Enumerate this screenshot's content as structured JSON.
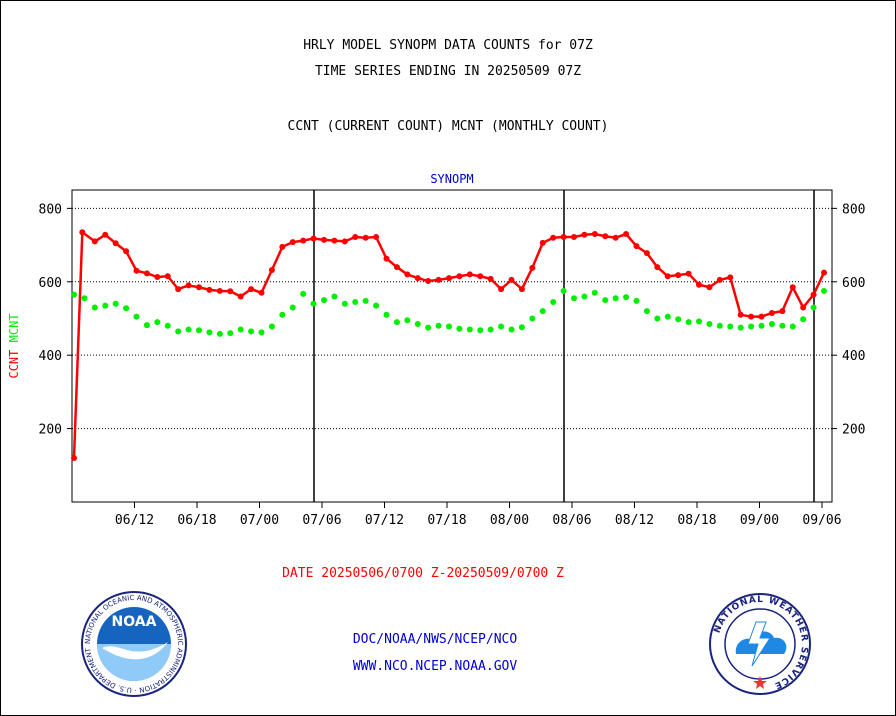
{
  "header": {
    "line1": "HRLY MODEL SYNOPM DATA COUNTS for 07Z",
    "line2": "TIME SERIES ENDING IN 20250509 07Z",
    "line3": "CCNT (CURRENT COUNT) MCNT (MONTHLY COUNT)"
  },
  "footer": {
    "date_range": "DATE 20250506/0700 Z-20250509/0700 Z",
    "link1": "DOC/NOAA/NWS/NCEP/NCO",
    "link2": "WWW.NCO.NCEP.NOAA.GOV"
  },
  "logos": {
    "left_text": "NOAA",
    "left_ring": "NATIONAL OCEANIC AND ATMOSPHERIC ADMINISTRATION · U.S. DEPARTMENT OF COMMERCE",
    "right_ring": "NATIONAL WEATHER SERVICE"
  },
  "colors": {
    "ccnt": "#ff0000",
    "mcnt": "#00ee00",
    "title": "#0000cc"
  },
  "chart_data": {
    "type": "line",
    "title": "SYNOPM",
    "ylabel_parts": [
      {
        "text": "CCNT",
        "color": "#ff0000"
      },
      {
        "text": "MCNT",
        "color": "#00ee00"
      }
    ],
    "ylim": [
      0,
      850
    ],
    "yticks": [
      200,
      400,
      600,
      800
    ],
    "grid": true,
    "x_tick_labels": [
      "06/12",
      "06/18",
      "07/00",
      "07/06",
      "07/12",
      "07/18",
      "08/00",
      "08/06",
      "08/12",
      "08/18",
      "09/00",
      "09/06"
    ],
    "x_tick_positions": [
      6,
      12,
      18,
      24,
      30,
      36,
      42,
      48,
      54,
      60,
      66,
      72
    ],
    "x_range": [
      0,
      72
    ],
    "day_boundaries": [
      24,
      48,
      72
    ],
    "series": [
      {
        "name": "CCNT",
        "color": "#ff0000",
        "x": [
          0,
          0.8,
          2,
          3,
          4,
          5,
          6,
          7,
          8,
          9,
          10,
          11,
          12,
          13,
          14,
          15,
          16,
          17,
          18,
          19,
          20,
          21,
          22,
          23,
          24,
          25,
          26,
          27,
          28,
          29,
          30,
          31,
          32,
          33,
          34,
          35,
          36,
          37,
          38,
          39,
          40,
          41,
          42,
          43,
          44,
          45,
          46,
          47,
          48,
          49,
          50,
          51,
          52,
          53,
          54,
          55,
          56,
          57,
          58,
          59,
          60,
          61,
          62,
          63,
          64,
          65,
          66,
          67,
          68,
          69,
          70,
          71,
          72
        ],
        "values": [
          120,
          735,
          710,
          728,
          705,
          683,
          630,
          623,
          613,
          615,
          580,
          590,
          585,
          578,
          575,
          574,
          560,
          580,
          570,
          632,
          695,
          708,
          712,
          718,
          714,
          712,
          710,
          722,
          720,
          722,
          663,
          640,
          620,
          610,
          602,
          605,
          610,
          615,
          620,
          615,
          608,
          580,
          605,
          580,
          638,
          706,
          720,
          722,
          722,
          728,
          730,
          724,
          720,
          730,
          697,
          678,
          640,
          615,
          618,
          622,
          592,
          585,
          605,
          612,
          510,
          505,
          505,
          515,
          520,
          585,
          530,
          565,
          625
        ]
      },
      {
        "name": "MCNT",
        "color": "#00ee00",
        "x": [
          0,
          1,
          2,
          3,
          4,
          5,
          6,
          7,
          8,
          9,
          10,
          11,
          12,
          13,
          14,
          15,
          16,
          17,
          18,
          19,
          20,
          21,
          22,
          23,
          24,
          25,
          26,
          27,
          28,
          29,
          30,
          31,
          32,
          33,
          34,
          35,
          36,
          37,
          38,
          39,
          40,
          41,
          42,
          43,
          44,
          45,
          46,
          47,
          48,
          49,
          50,
          51,
          52,
          53,
          54,
          55,
          56,
          57,
          58,
          59,
          60,
          61,
          62,
          63,
          64,
          65,
          66,
          67,
          68,
          69,
          70,
          71,
          72
        ],
        "values": [
          565,
          555,
          530,
          535,
          540,
          528,
          505,
          482,
          490,
          480,
          465,
          470,
          468,
          462,
          458,
          460,
          470,
          465,
          462,
          478,
          510,
          530,
          567,
          540,
          550,
          560,
          540,
          545,
          548,
          535,
          510,
          490,
          495,
          485,
          475,
          480,
          478,
          472,
          470,
          468,
          470,
          478,
          470,
          476,
          500,
          520,
          545,
          575,
          555,
          560,
          570,
          550,
          555,
          558,
          548,
          520,
          500,
          505,
          498,
          490,
          492,
          485,
          480,
          478,
          475,
          478,
          480,
          485,
          480,
          478,
          498,
          530,
          575
        ]
      }
    ]
  }
}
